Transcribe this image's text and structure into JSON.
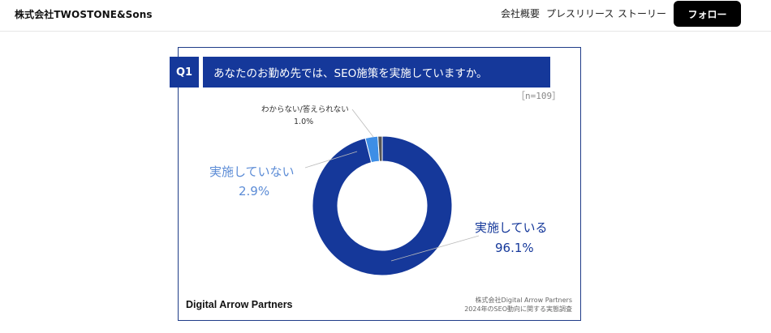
{
  "header": {
    "brand": "株式会社TWOSTONE&Sons",
    "nav": [
      "会社概要",
      "プレスリリース",
      "ストーリー"
    ],
    "follow_label": "フォロー"
  },
  "card": {
    "question_no": "Q1",
    "question": "あなたのお勤め先では、SEO施策を実施していますか。",
    "n_label": "［n=109］",
    "logo": "Digital Arrow Partners",
    "source_line1": "株式会社Digital Arrow Partners",
    "source_line2": "2024年のSEO動向に関する実態調査"
  },
  "chart_data": {
    "type": "pie",
    "donut": true,
    "categories": [
      "実施している",
      "実施していない",
      "わからない/答えられない"
    ],
    "values": [
      96.1,
      2.9,
      1.0
    ],
    "value_labels": [
      "96.1%",
      "2.9%",
      "1.0%"
    ],
    "colors": [
      "#15389a",
      "#3d8ee6",
      "#555555"
    ]
  }
}
